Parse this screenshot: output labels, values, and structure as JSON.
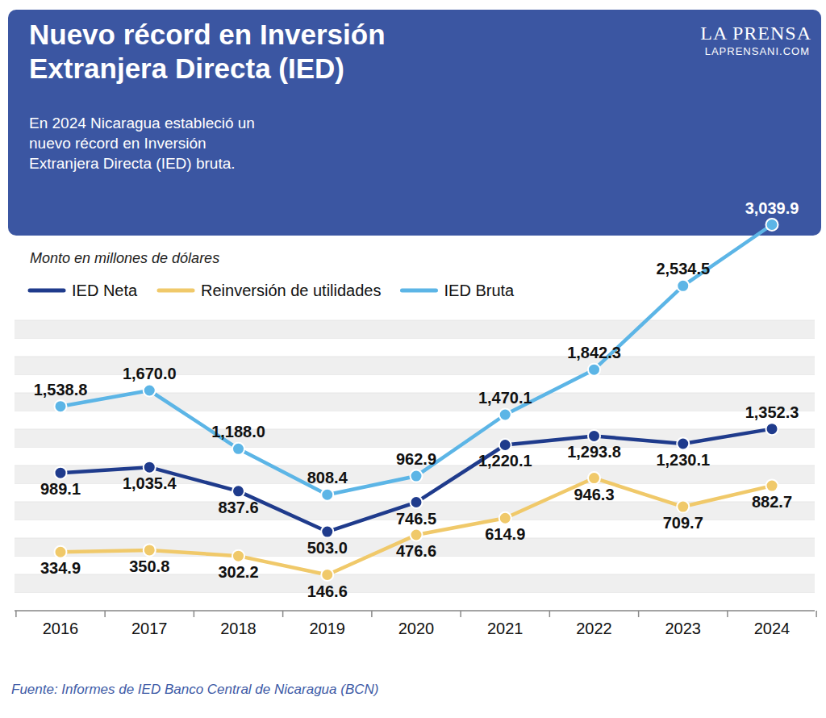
{
  "chart_data": {
    "type": "line",
    "title": "Nuevo récord en Inversión Extranjera Directa (IED)",
    "subtitle": "En 2024 Nicaragua estableció un nuevo récord en Inversión Extranjera Directa (IED) bruta.",
    "ylabel": "Monto en millones de dólares",
    "source": "Fuente: Informes de IED Banco Central de Nicaragua (BCN)",
    "categories": [
      "2016",
      "2017",
      "2018",
      "2019",
      "2020",
      "2021",
      "2022",
      "2023",
      "2024"
    ],
    "series": [
      {
        "name": "IED Neta",
        "color": "#1f3b8c",
        "marker": "circle",
        "values": [
          989.1,
          1035.4,
          837.6,
          503.0,
          746.5,
          1220.1,
          1293.8,
          1230.1,
          1352.3
        ],
        "value_labels": [
          "989.1",
          "1,035.4",
          "837.6",
          "503.0",
          "746.5",
          "1,220.1",
          "1,293.8",
          "1,230.1",
          "1,352.3"
        ]
      },
      {
        "name": "Reinversión de utilidades",
        "color": "#f0c96a",
        "marker": "circle",
        "values": [
          334.9,
          350.8,
          302.2,
          146.6,
          476.6,
          614.9,
          946.3,
          709.7,
          882.7
        ],
        "value_labels": [
          "334.9",
          "350.8",
          "302.2",
          "146.6",
          "476.6",
          "614.9",
          "946.3",
          "709.7",
          "882.7"
        ]
      },
      {
        "name": "IED Bruta",
        "color": "#5cb5e6",
        "marker": "circle",
        "values": [
          1538.8,
          1670.0,
          1188.0,
          808.4,
          962.9,
          1470.1,
          1842.3,
          2534.5,
          3039.9
        ],
        "value_labels": [
          "1,538.8",
          "1,670.0",
          "1,188.0",
          "808.4",
          "962.9",
          "1,470.1",
          "1,842.3",
          "2,534.5",
          "3,039.9"
        ]
      }
    ],
    "ylim": [
      -150,
      3100
    ],
    "yticks": [
      -150,
      0,
      150,
      300,
      450,
      600,
      750,
      900,
      1050,
      1200,
      1350,
      1500,
      1650,
      1800,
      1950,
      2100,
      2250
    ],
    "grid": true,
    "legend": "top-left",
    "data_labels": true,
    "tick_labels": "x"
  },
  "brand": "LA PRENSA",
  "website": "LAPRENSANI.COM"
}
